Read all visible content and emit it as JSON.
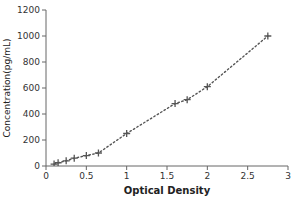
{
  "chart_data": {
    "type": "line",
    "xlabel": "Optical Density",
    "ylabel": "Concentration(pg/mL)",
    "x": [
      0.1,
      0.15,
      0.25,
      0.35,
      0.5,
      0.65,
      1.0,
      1.6,
      1.75,
      2.0,
      2.75
    ],
    "values": [
      15,
      25,
      40,
      60,
      80,
      100,
      250,
      480,
      510,
      610,
      1000
    ],
    "xlim": [
      0,
      3
    ],
    "ylim": [
      0,
      1200
    ],
    "xticks": [
      0,
      0.5,
      1,
      1.5,
      2,
      2.5,
      3
    ],
    "yticks": [
      0,
      200,
      400,
      600,
      800,
      1000,
      1200
    ],
    "color": "#555555",
    "marker": "plus",
    "line_style": "dotted",
    "grid": false
  }
}
